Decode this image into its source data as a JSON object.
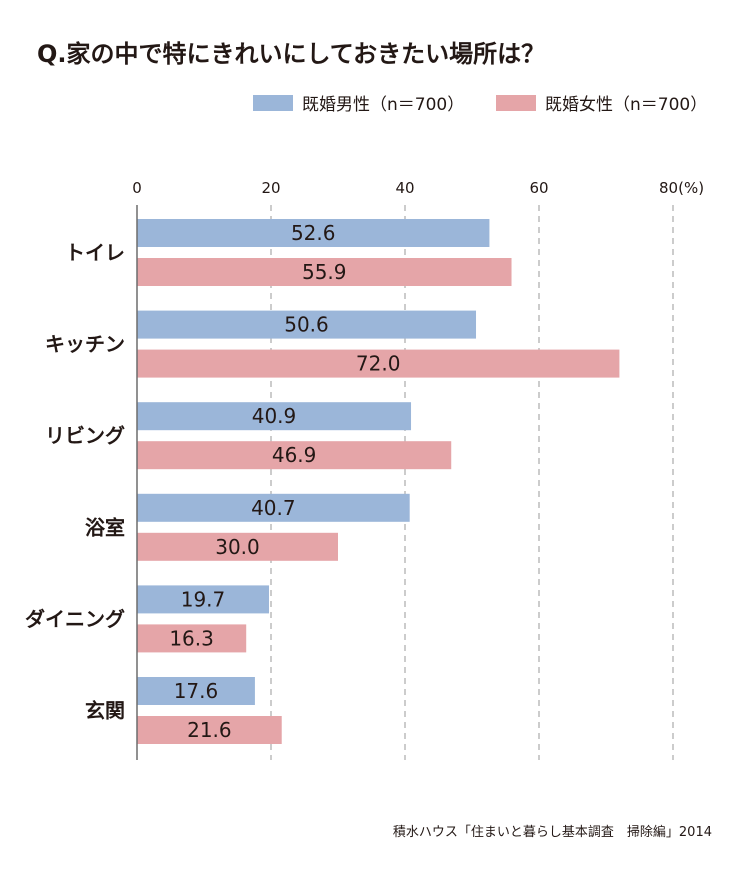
{
  "chart_data": {
    "type": "bar",
    "orientation": "horizontal",
    "title": "Q.家の中で特にきれいにしておきたい場所は？",
    "categories": [
      "トイレ",
      "キッチン",
      "リビング",
      "浴室",
      "ダイニング",
      "玄関"
    ],
    "series": [
      {
        "name": "既婚男性（n＝700）",
        "color": "#9bb6d9",
        "values": [
          52.6,
          50.6,
          40.9,
          40.7,
          19.7,
          17.6
        ],
        "value_labels": [
          "52.6",
          "50.6",
          "40.9",
          "40.7",
          "19.7",
          "17.6"
        ]
      },
      {
        "name": "既婚女性（n＝700）",
        "color": "#e5a5a8",
        "values": [
          55.9,
          72.0,
          46.9,
          30.0,
          16.3,
          21.6
        ],
        "value_labels": [
          "55.9",
          "72.0",
          "46.9",
          "30.0",
          "16.3",
          "21.6"
        ]
      }
    ],
    "xlim": [
      0,
      80
    ],
    "xticks": [
      0,
      20,
      40,
      60,
      80
    ],
    "xtick_labels": [
      "0",
      "20",
      "40",
      "60",
      "80(%)"
    ],
    "grid": true,
    "legend_position": "top-right",
    "source": "積水ハウス「住まいと暮らし基本調査　掃除編」2014"
  }
}
